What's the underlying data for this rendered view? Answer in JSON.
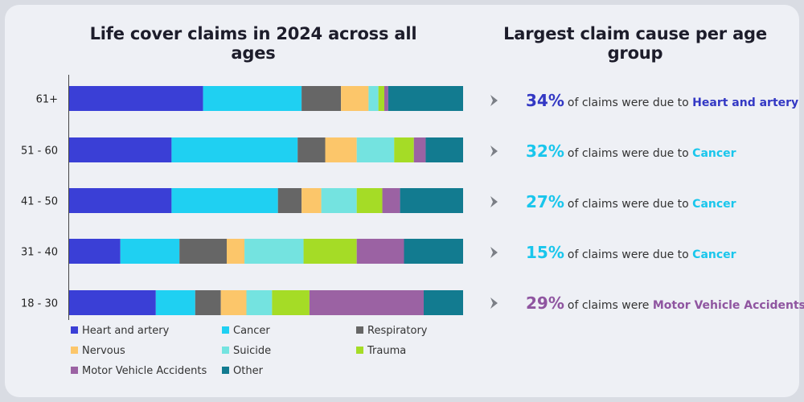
{
  "titles": {
    "left": "Life cover claims in 2024 across all ages",
    "right": "Largest claim cause per age group"
  },
  "colors": {
    "Heart and artery": "#3a3fd6",
    "Cancer": "#1fd0f2",
    "Respiratory": "#666666",
    "Nervous": "#fcc66a",
    "Suicide": "#74e3e0",
    "Trauma": "#a5dc26",
    "Motor Vehicle Accidents": "#9b62a3",
    "Other": "#127b90"
  },
  "chart_data": {
    "type": "bar",
    "orientation": "horizontal",
    "stacked": true,
    "normalized": "percent",
    "title": "Life cover claims in 2024 across all ages",
    "categories": [
      "61+",
      "51 - 60",
      "41 - 50",
      "31 - 40",
      "18 - 30"
    ],
    "series": [
      {
        "name": "Heart and artery",
        "values": [
          34,
          26,
          26,
          13,
          22
        ]
      },
      {
        "name": "Cancer",
        "values": [
          25,
          32,
          27,
          15,
          10
        ]
      },
      {
        "name": "Respiratory",
        "values": [
          10,
          7,
          6,
          12,
          6.5
        ]
      },
      {
        "name": "Nervous",
        "values": [
          7,
          8,
          5,
          4.5,
          6.5
        ]
      },
      {
        "name": "Suicide",
        "values": [
          2.5,
          9.5,
          9,
          15,
          6.5
        ]
      },
      {
        "name": "Trauma",
        "values": [
          1.5,
          5,
          6.5,
          13.5,
          9.5
        ]
      },
      {
        "name": "Motor Vehicle Accidents",
        "values": [
          1,
          3,
          4.5,
          12,
          29
        ]
      },
      {
        "name": "Other",
        "values": [
          19,
          9.5,
          16,
          15,
          10
        ]
      }
    ],
    "xlim": [
      0,
      100
    ],
    "grid": false,
    "legend_position": "bottom"
  },
  "legend": [
    "Heart and artery",
    "Cancer",
    "Respiratory",
    "Nervous",
    "Suicide",
    "Trauma",
    "Motor Vehicle Accidents",
    "Other"
  ],
  "facts": [
    {
      "pct": "34%",
      "text": "of claims were due to",
      "cause": "Heart and artery",
      "color": "#3338c4"
    },
    {
      "pct": "32%",
      "text": "of claims were due to",
      "cause": "Cancer",
      "color": "#19c6ec"
    },
    {
      "pct": "27%",
      "text": "of claims were due to",
      "cause": "Cancer",
      "color": "#19c6ec"
    },
    {
      "pct": "15%",
      "text": "of claims were due to",
      "cause": "Cancer",
      "color": "#19c6ec"
    },
    {
      "pct": "29%",
      "text": "of claims were",
      "cause": "Motor Vehicle Accidents",
      "color": "#8f55a0"
    }
  ]
}
